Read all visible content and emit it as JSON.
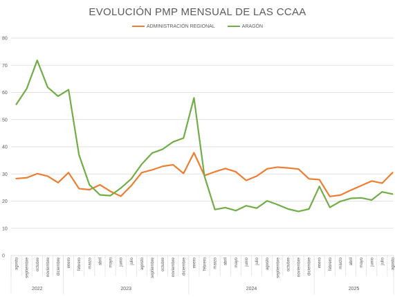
{
  "chart_data": {
    "type": "line",
    "title": "EVOLUCIÓN PMP MENSUAL DE LAS CCAA",
    "legend_position": "top",
    "grid": true,
    "ylim": [
      0,
      80
    ],
    "yticks": [
      0,
      10,
      20,
      30,
      40,
      50,
      60,
      70,
      80
    ],
    "x": [
      "agosto",
      "septiembre",
      "octubre",
      "noviembre",
      "diciembre",
      "enero",
      "febrero",
      "marzo",
      "abril",
      "mayo",
      "junio",
      "julio",
      "agosto",
      "septiembre",
      "octubre",
      "noviembre",
      "diciembre",
      "enero",
      "febrero",
      "marzo",
      "abril",
      "mayo",
      "junio",
      "julio",
      "agosto",
      "septiembre",
      "octubre",
      "noviembre",
      "diciembre",
      "enero",
      "febrero",
      "marzo",
      "abril",
      "mayo",
      "junio",
      "julio",
      "agosto"
    ],
    "years": [
      {
        "label": "2022",
        "start": 0,
        "end": 4
      },
      {
        "label": "2023",
        "start": 5,
        "end": 16
      },
      {
        "label": "2024",
        "start": 17,
        "end": 28
      },
      {
        "label": "2025",
        "start": 29,
        "end": 36
      }
    ],
    "series": [
      {
        "name": "ADMINISTRACIÓN REGIONAL",
        "color": "#ED7D31",
        "values": [
          28.3,
          28.6,
          30.1,
          29.2,
          26.8,
          30.5,
          24.6,
          24.2,
          26.0,
          23.6,
          21.8,
          25.7,
          30.5,
          31.5,
          32.8,
          33.4,
          30.2,
          37.8,
          29.4,
          30.8,
          32.0,
          30.8,
          27.6,
          29.2,
          31.9,
          32.5,
          32.2,
          31.8,
          28.2,
          27.9,
          21.7,
          22.2,
          24.0,
          25.7,
          27.4,
          26.6,
          30.5
        ]
      },
      {
        "name": "ARAGÓN",
        "color": "#70AD47",
        "values": [
          55.6,
          61.4,
          71.8,
          61.9,
          58.6,
          61.0,
          37.0,
          26.0,
          22.3,
          22.0,
          24.8,
          28.2,
          33.6,
          37.7,
          39.1,
          41.8,
          43.2,
          58.0,
          29.2,
          16.9,
          17.6,
          16.5,
          18.3,
          17.4,
          20.1,
          18.7,
          17.1,
          16.2,
          17.1,
          25.4,
          17.7,
          19.9,
          21.0,
          21.2,
          20.4,
          23.4,
          22.6
        ]
      }
    ]
  }
}
